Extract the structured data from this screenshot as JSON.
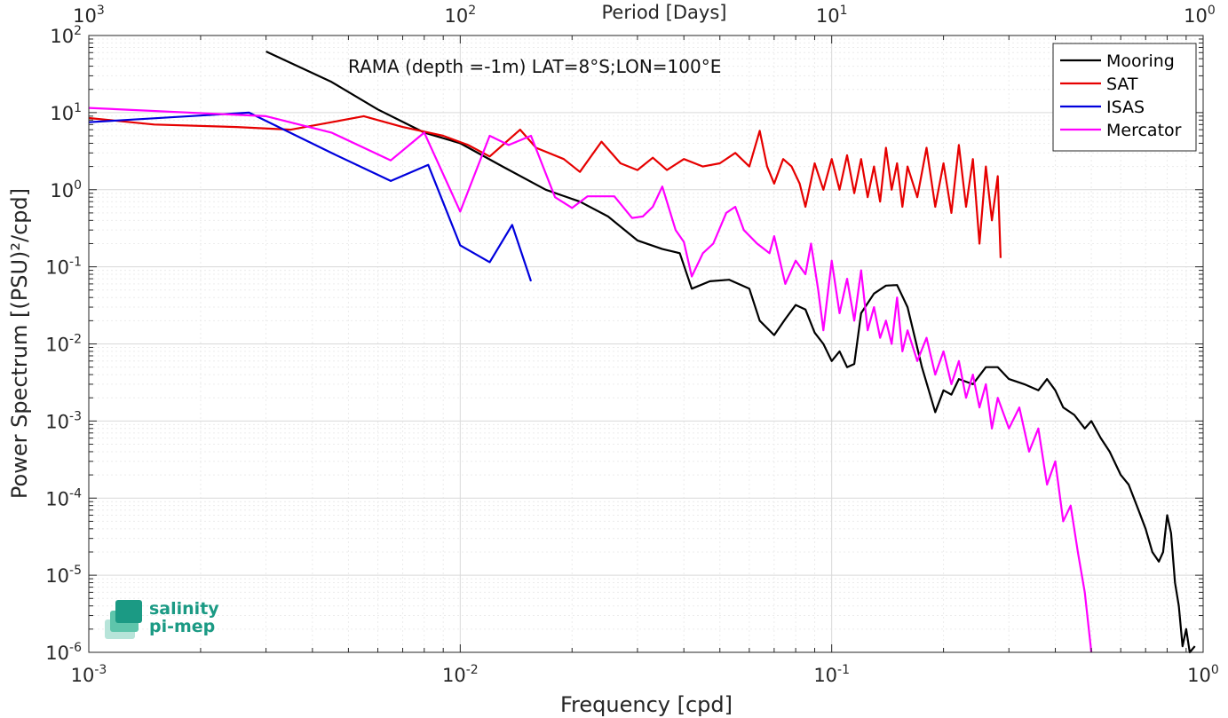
{
  "chart_data": {
    "type": "line",
    "annotation": "RAMA (depth =-1m) LAT=8°S;LON=100°E",
    "xlabel": "Frequency [cpd]",
    "ylabel": "Power Spectrum [(PSU)²/cpd]",
    "top_xlabel": "Period [Days]",
    "xscale": "log",
    "yscale": "log",
    "xlim": [
      0.001,
      1
    ],
    "ylim": [
      1e-06,
      100
    ],
    "x_ticks": [
      {
        "value": 0.001,
        "base": "10",
        "exp": "-3"
      },
      {
        "value": 0.01,
        "base": "10",
        "exp": "-2"
      },
      {
        "value": 0.1,
        "base": "10",
        "exp": "-1"
      },
      {
        "value": 1,
        "base": "10",
        "exp": "0"
      }
    ],
    "y_ticks": [
      {
        "value": 1e-06,
        "base": "10",
        "exp": "-6"
      },
      {
        "value": 1e-05,
        "base": "10",
        "exp": "-5"
      },
      {
        "value": 0.0001,
        "base": "10",
        "exp": "-4"
      },
      {
        "value": 0.001,
        "base": "10",
        "exp": "-3"
      },
      {
        "value": 0.01,
        "base": "10",
        "exp": "-2"
      },
      {
        "value": 0.1,
        "base": "10",
        "exp": "-1"
      },
      {
        "value": 1,
        "base": "10",
        "exp": "0"
      },
      {
        "value": 10,
        "base": "10",
        "exp": "1"
      },
      {
        "value": 100,
        "base": "10",
        "exp": "2"
      }
    ],
    "top_ticks": [
      {
        "value": 0.001,
        "base": "10",
        "exp": "3"
      },
      {
        "value": 0.01,
        "base": "10",
        "exp": "2"
      },
      {
        "value": 0.1,
        "base": "10",
        "exp": "1"
      },
      {
        "value": 1,
        "base": "10",
        "exp": "0"
      }
    ],
    "grid": true,
    "legend_position": "top-right",
    "series": [
      {
        "name": "Mooring",
        "color": "#000000",
        "points": [
          [
            0.003,
            62
          ],
          [
            0.0045,
            25
          ],
          [
            0.006,
            11
          ],
          [
            0.008,
            5.5
          ],
          [
            0.01,
            4
          ],
          [
            0.013,
            2
          ],
          [
            0.017,
            1.0
          ],
          [
            0.021,
            0.7
          ],
          [
            0.025,
            0.45
          ],
          [
            0.03,
            0.22
          ],
          [
            0.035,
            0.17
          ],
          [
            0.039,
            0.15
          ],
          [
            0.042,
            0.052
          ],
          [
            0.047,
            0.065
          ],
          [
            0.053,
            0.068
          ],
          [
            0.06,
            0.052
          ],
          [
            0.064,
            0.02
          ],
          [
            0.07,
            0.013
          ],
          [
            0.075,
            0.021
          ],
          [
            0.08,
            0.032
          ],
          [
            0.085,
            0.028
          ],
          [
            0.09,
            0.014
          ],
          [
            0.095,
            0.01
          ],
          [
            0.1,
            0.006
          ],
          [
            0.105,
            0.008
          ],
          [
            0.11,
            0.005
          ],
          [
            0.115,
            0.0055
          ],
          [
            0.12,
            0.025
          ],
          [
            0.13,
            0.045
          ],
          [
            0.14,
            0.057
          ],
          [
            0.15,
            0.058
          ],
          [
            0.16,
            0.03
          ],
          [
            0.175,
            0.005
          ],
          [
            0.19,
            0.0013
          ],
          [
            0.2,
            0.0025
          ],
          [
            0.21,
            0.0022
          ],
          [
            0.22,
            0.0035
          ],
          [
            0.24,
            0.003
          ],
          [
            0.26,
            0.005
          ],
          [
            0.28,
            0.005
          ],
          [
            0.3,
            0.0035
          ],
          [
            0.33,
            0.003
          ],
          [
            0.36,
            0.0025
          ],
          [
            0.38,
            0.0035
          ],
          [
            0.4,
            0.0025
          ],
          [
            0.42,
            0.0015
          ],
          [
            0.45,
            0.0012
          ],
          [
            0.48,
            0.0008
          ],
          [
            0.5,
            0.001
          ],
          [
            0.53,
            0.0006
          ],
          [
            0.56,
            0.0004
          ],
          [
            0.6,
            0.0002
          ],
          [
            0.63,
            0.00015
          ],
          [
            0.67,
            7e-05
          ],
          [
            0.7,
            4e-05
          ],
          [
            0.73,
            2e-05
          ],
          [
            0.76,
            1.5e-05
          ],
          [
            0.78,
            2e-05
          ],
          [
            0.8,
            6e-05
          ],
          [
            0.82,
            3.5e-05
          ],
          [
            0.84,
            8e-06
          ],
          [
            0.86,
            4e-06
          ],
          [
            0.88,
            1.2e-06
          ],
          [
            0.9,
            2e-06
          ],
          [
            0.92,
            1e-06
          ],
          [
            0.95,
            1.2e-06
          ]
        ]
      },
      {
        "name": "SAT",
        "color": "#e60000",
        "points": [
          [
            0.001,
            8.5
          ],
          [
            0.0015,
            7
          ],
          [
            0.0025,
            6.5
          ],
          [
            0.0035,
            6
          ],
          [
            0.0045,
            7.5
          ],
          [
            0.0055,
            9
          ],
          [
            0.007,
            6.5
          ],
          [
            0.009,
            5
          ],
          [
            0.0105,
            3.8
          ],
          [
            0.012,
            2.7
          ],
          [
            0.0145,
            6
          ],
          [
            0.016,
            3.5
          ],
          [
            0.019,
            2.5
          ],
          [
            0.021,
            1.7
          ],
          [
            0.024,
            4.2
          ],
          [
            0.027,
            2.2
          ],
          [
            0.03,
            1.8
          ],
          [
            0.033,
            2.6
          ],
          [
            0.036,
            1.8
          ],
          [
            0.04,
            2.5
          ],
          [
            0.045,
            2.0
          ],
          [
            0.05,
            2.2
          ],
          [
            0.055,
            3.0
          ],
          [
            0.06,
            2.0
          ],
          [
            0.064,
            5.8
          ],
          [
            0.067,
            2.0
          ],
          [
            0.07,
            1.2
          ],
          [
            0.074,
            2.5
          ],
          [
            0.078,
            2.0
          ],
          [
            0.082,
            1.2
          ],
          [
            0.085,
            0.6
          ],
          [
            0.09,
            2.2
          ],
          [
            0.095,
            1.0
          ],
          [
            0.1,
            2.5
          ],
          [
            0.105,
            1.0
          ],
          [
            0.11,
            2.8
          ],
          [
            0.115,
            0.9
          ],
          [
            0.12,
            2.5
          ],
          [
            0.125,
            0.8
          ],
          [
            0.13,
            2.0
          ],
          [
            0.135,
            0.7
          ],
          [
            0.14,
            3.5
          ],
          [
            0.145,
            1.0
          ],
          [
            0.15,
            2.2
          ],
          [
            0.155,
            0.6
          ],
          [
            0.16,
            2.0
          ],
          [
            0.17,
            0.8
          ],
          [
            0.18,
            3.5
          ],
          [
            0.19,
            0.6
          ],
          [
            0.2,
            2.2
          ],
          [
            0.21,
            0.5
          ],
          [
            0.22,
            3.8
          ],
          [
            0.23,
            0.6
          ],
          [
            0.24,
            2.5
          ],
          [
            0.25,
            0.2
          ],
          [
            0.26,
            2.0
          ],
          [
            0.27,
            0.4
          ],
          [
            0.28,
            1.5
          ],
          [
            0.285,
            0.13
          ]
        ]
      },
      {
        "name": "ISAS",
        "color": "#0000dd",
        "points": [
          [
            0.001,
            7.5
          ],
          [
            0.0027,
            10
          ],
          [
            0.0045,
            3
          ],
          [
            0.0065,
            1.3
          ],
          [
            0.0082,
            2.1
          ],
          [
            0.01,
            0.19
          ],
          [
            0.012,
            0.115
          ],
          [
            0.0138,
            0.35
          ],
          [
            0.0155,
            0.065
          ]
        ]
      },
      {
        "name": "Mercator",
        "color": "#ff00ff",
        "points": [
          [
            0.001,
            11.5
          ],
          [
            0.003,
            9
          ],
          [
            0.0045,
            5.5
          ],
          [
            0.0065,
            2.4
          ],
          [
            0.008,
            5.5
          ],
          [
            0.01,
            0.52
          ],
          [
            0.012,
            5
          ],
          [
            0.0135,
            3.8
          ],
          [
            0.0155,
            5
          ],
          [
            0.018,
            0.8
          ],
          [
            0.02,
            0.58
          ],
          [
            0.022,
            0.82
          ],
          [
            0.026,
            0.82
          ],
          [
            0.029,
            0.43
          ],
          [
            0.031,
            0.45
          ],
          [
            0.033,
            0.6
          ],
          [
            0.035,
            1.1
          ],
          [
            0.038,
            0.3
          ],
          [
            0.04,
            0.21
          ],
          [
            0.042,
            0.075
          ],
          [
            0.045,
            0.15
          ],
          [
            0.048,
            0.2
          ],
          [
            0.052,
            0.5
          ],
          [
            0.055,
            0.6
          ],
          [
            0.058,
            0.3
          ],
          [
            0.063,
            0.2
          ],
          [
            0.068,
            0.15
          ],
          [
            0.07,
            0.25
          ],
          [
            0.075,
            0.06
          ],
          [
            0.08,
            0.12
          ],
          [
            0.085,
            0.08
          ],
          [
            0.088,
            0.2
          ],
          [
            0.092,
            0.05
          ],
          [
            0.095,
            0.015
          ],
          [
            0.1,
            0.12
          ],
          [
            0.105,
            0.025
          ],
          [
            0.11,
            0.07
          ],
          [
            0.115,
            0.02
          ],
          [
            0.12,
            0.09
          ],
          [
            0.125,
            0.015
          ],
          [
            0.13,
            0.03
          ],
          [
            0.135,
            0.012
          ],
          [
            0.14,
            0.02
          ],
          [
            0.145,
            0.01
          ],
          [
            0.15,
            0.04
          ],
          [
            0.155,
            0.008
          ],
          [
            0.16,
            0.015
          ],
          [
            0.17,
            0.006
          ],
          [
            0.18,
            0.012
          ],
          [
            0.19,
            0.004
          ],
          [
            0.2,
            0.008
          ],
          [
            0.21,
            0.003
          ],
          [
            0.22,
            0.006
          ],
          [
            0.23,
            0.002
          ],
          [
            0.24,
            0.004
          ],
          [
            0.25,
            0.0015
          ],
          [
            0.26,
            0.003
          ],
          [
            0.27,
            0.0008
          ],
          [
            0.28,
            0.002
          ],
          [
            0.3,
            0.0008
          ],
          [
            0.32,
            0.0015
          ],
          [
            0.34,
            0.0004
          ],
          [
            0.36,
            0.0008
          ],
          [
            0.38,
            0.00015
          ],
          [
            0.4,
            0.0003
          ],
          [
            0.42,
            5e-05
          ],
          [
            0.44,
            8e-05
          ],
          [
            0.46,
            2e-05
          ],
          [
            0.48,
            6e-06
          ],
          [
            0.5,
            1e-06
          ]
        ]
      }
    ]
  },
  "logo": {
    "line1": "salinity",
    "line2": "pi-mep"
  }
}
